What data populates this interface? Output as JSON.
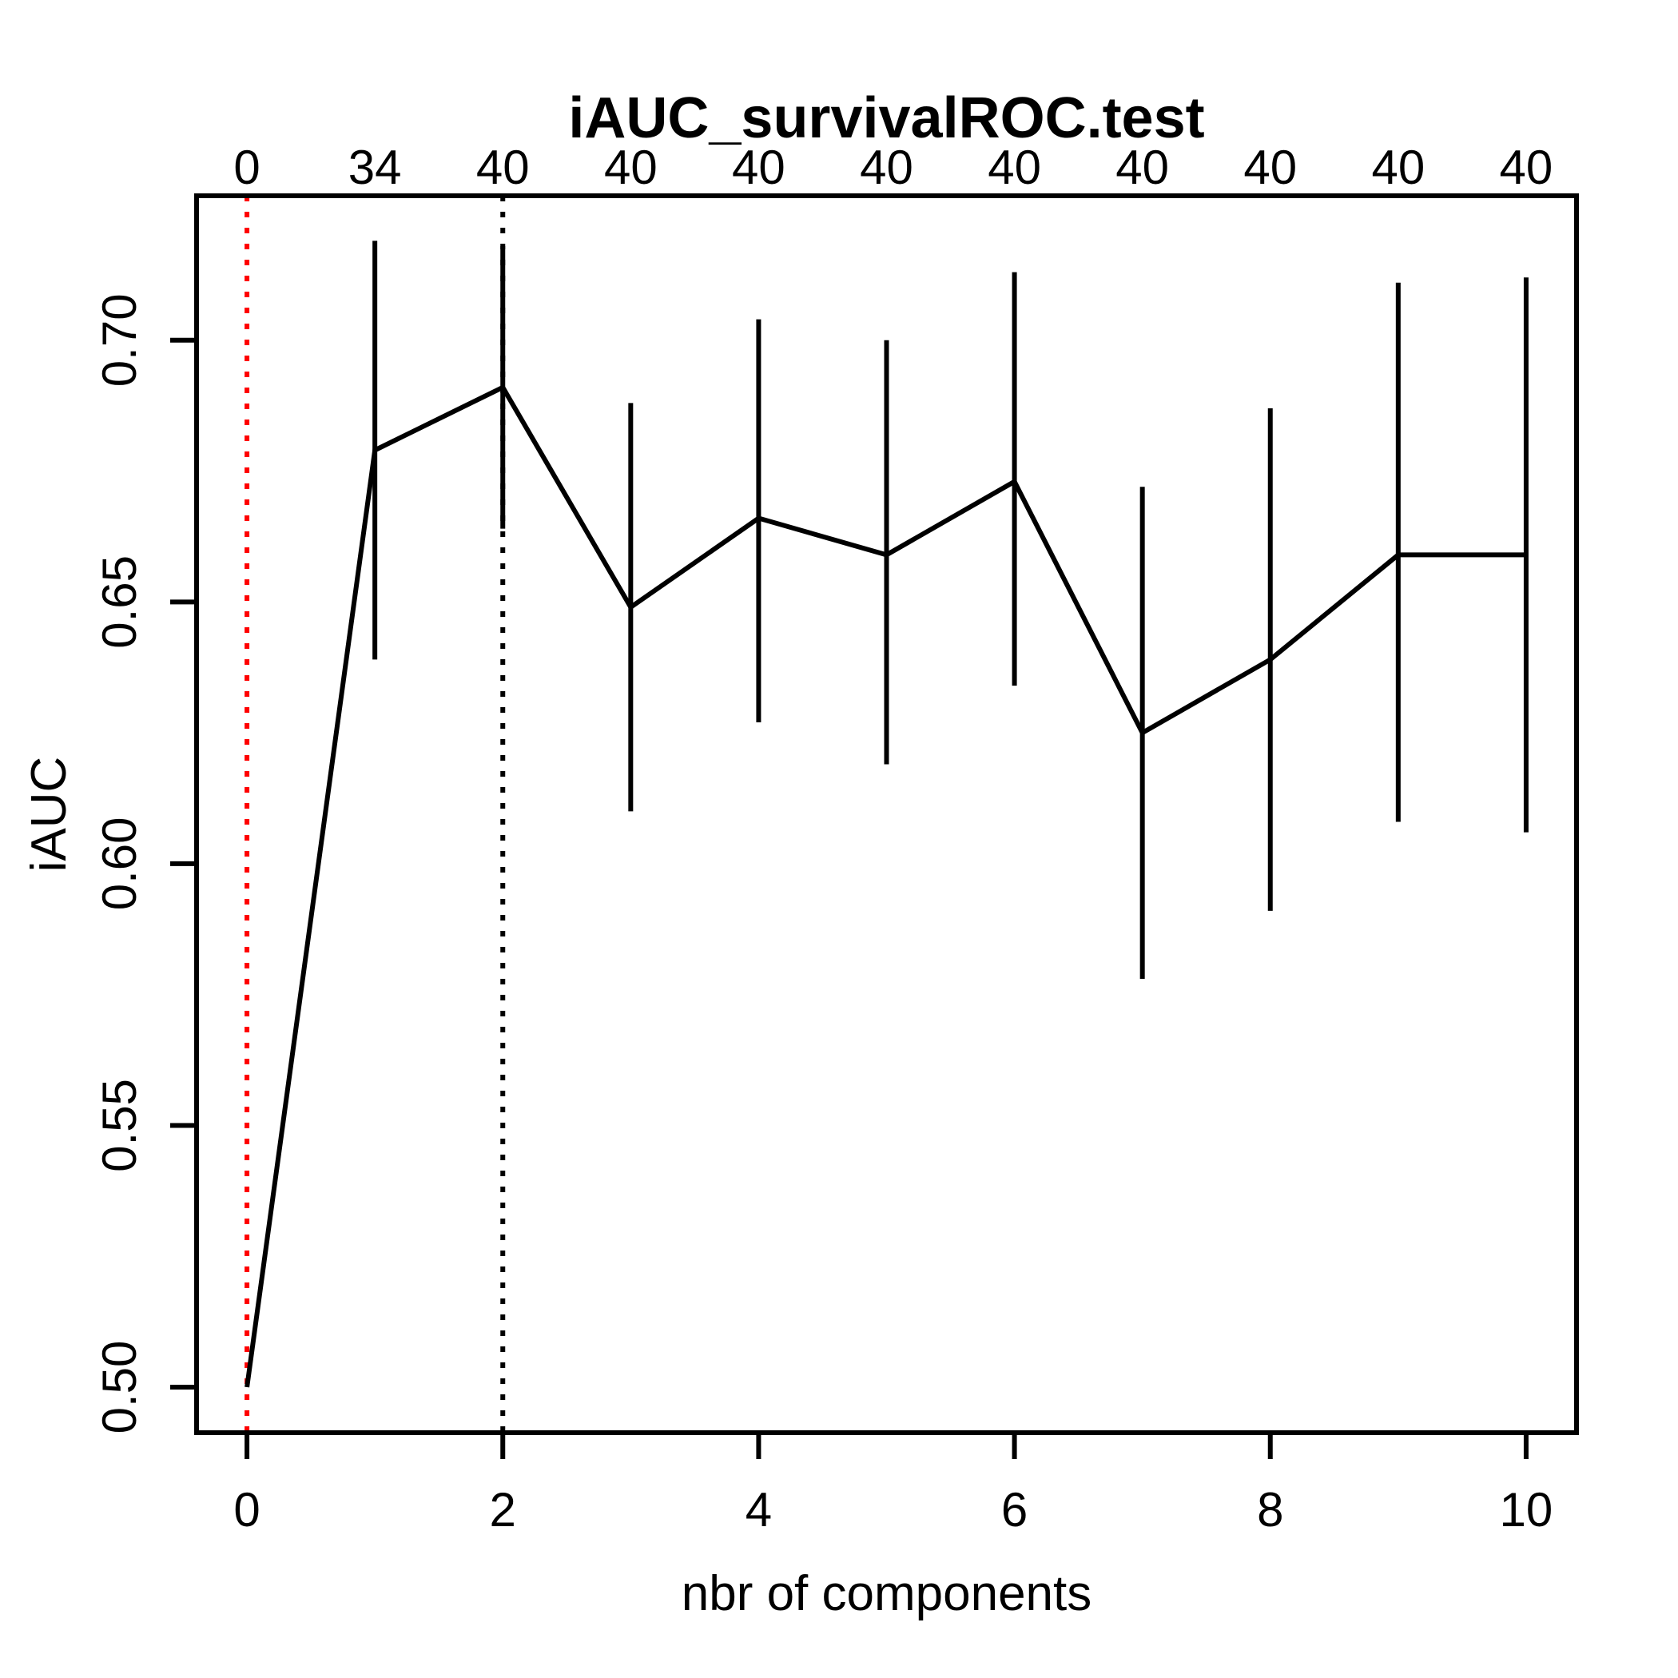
{
  "chart_data": {
    "type": "line",
    "title": "iAUC_survivalROC.test",
    "xlabel": "nbr of components",
    "ylabel": "iAUC",
    "x": [
      0,
      1,
      2,
      3,
      4,
      5,
      6,
      7,
      8,
      9,
      10
    ],
    "y": [
      0.5,
      0.679,
      0.691,
      0.649,
      0.666,
      0.659,
      0.673,
      0.625,
      0.639,
      0.659,
      0.659
    ],
    "error_low": [
      null,
      0.639,
      0.664,
      0.61,
      0.627,
      0.619,
      0.634,
      0.578,
      0.591,
      0.608,
      0.606
    ],
    "error_high": [
      null,
      0.719,
      0.718,
      0.688,
      0.704,
      0.7,
      0.713,
      0.672,
      0.687,
      0.711,
      0.712
    ],
    "top_axis_labels": [
      "0",
      "34",
      "40",
      "40",
      "40",
      "40",
      "40",
      "40",
      "40",
      "40",
      "40"
    ],
    "x_ticks": [
      0,
      2,
      4,
      6,
      8,
      10
    ],
    "x_tick_labels": [
      "0",
      "2",
      "4",
      "6",
      "8",
      "10"
    ],
    "y_ticks": [
      0.5,
      0.55,
      0.6,
      0.65,
      0.7
    ],
    "y_tick_labels": [
      "0.50",
      "0.55",
      "0.60",
      "0.65",
      "0.70"
    ],
    "xlim": [
      -0.394,
      10.394
    ],
    "ylim": [
      0.4913,
      0.7276
    ],
    "grid": false,
    "legend": null,
    "line_color": "#000000",
    "vlines": [
      {
        "x": 0,
        "color": "#ff0000",
        "style": "dotted"
      },
      {
        "x": 2,
        "color": "#000000",
        "style": "dotted"
      }
    ]
  }
}
